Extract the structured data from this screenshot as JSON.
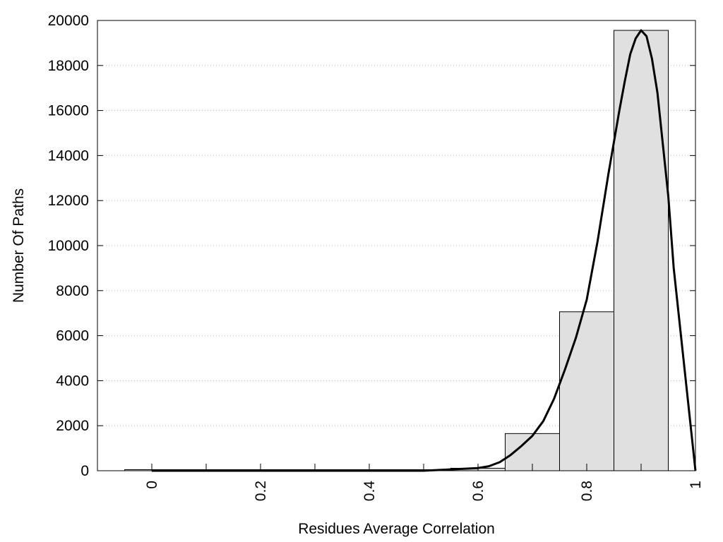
{
  "chart_data": {
    "type": "bar",
    "xlabel": "Residues Average Correlation",
    "ylabel": "Number Of Paths",
    "xlim": [
      -0.1,
      1.0
    ],
    "ylim": [
      0,
      20000
    ],
    "x_ticks": [
      "0",
      "0.2",
      "0.4",
      "0.6",
      "0.8",
      "1"
    ],
    "y_ticks": [
      "0",
      "2000",
      "4000",
      "6000",
      "8000",
      "10000",
      "12000",
      "14000",
      "16000",
      "18000",
      "20000"
    ],
    "grid": "horizontal dotted",
    "bins": [
      {
        "center": 0.0,
        "value": 0
      },
      {
        "center": 0.1,
        "value": 0
      },
      {
        "center": 0.2,
        "value": 0
      },
      {
        "center": 0.3,
        "value": 0
      },
      {
        "center": 0.4,
        "value": 0
      },
      {
        "center": 0.5,
        "value": 0
      },
      {
        "center": 0.6,
        "value": 110
      },
      {
        "center": 0.7,
        "value": 1650
      },
      {
        "center": 0.8,
        "value": 7060
      },
      {
        "center": 0.9,
        "value": 19560
      }
    ],
    "bin_width": 0.1,
    "curve": {
      "x": [
        0.0,
        0.1,
        0.2,
        0.3,
        0.4,
        0.5,
        0.55,
        0.6,
        0.62,
        0.64,
        0.66,
        0.68,
        0.7,
        0.72,
        0.74,
        0.76,
        0.78,
        0.8,
        0.82,
        0.84,
        0.86,
        0.87,
        0.88,
        0.89,
        0.9,
        0.91,
        0.92,
        0.93,
        0.94,
        0.95,
        0.96,
        0.98,
        1.0
      ],
      "y": [
        0,
        0,
        0,
        0,
        0,
        0,
        60,
        120,
        200,
        380,
        700,
        1100,
        1550,
        2200,
        3200,
        4500,
        5900,
        7600,
        10200,
        13200,
        16000,
        17300,
        18500,
        19200,
        19560,
        19300,
        18300,
        16800,
        14500,
        12200,
        9000,
        4500,
        0
      ]
    },
    "colors": {
      "bar_fill": "#e0e0e0",
      "bar_stroke": "#000000",
      "curve": "#000000",
      "grid": "#bbbbbb"
    }
  }
}
